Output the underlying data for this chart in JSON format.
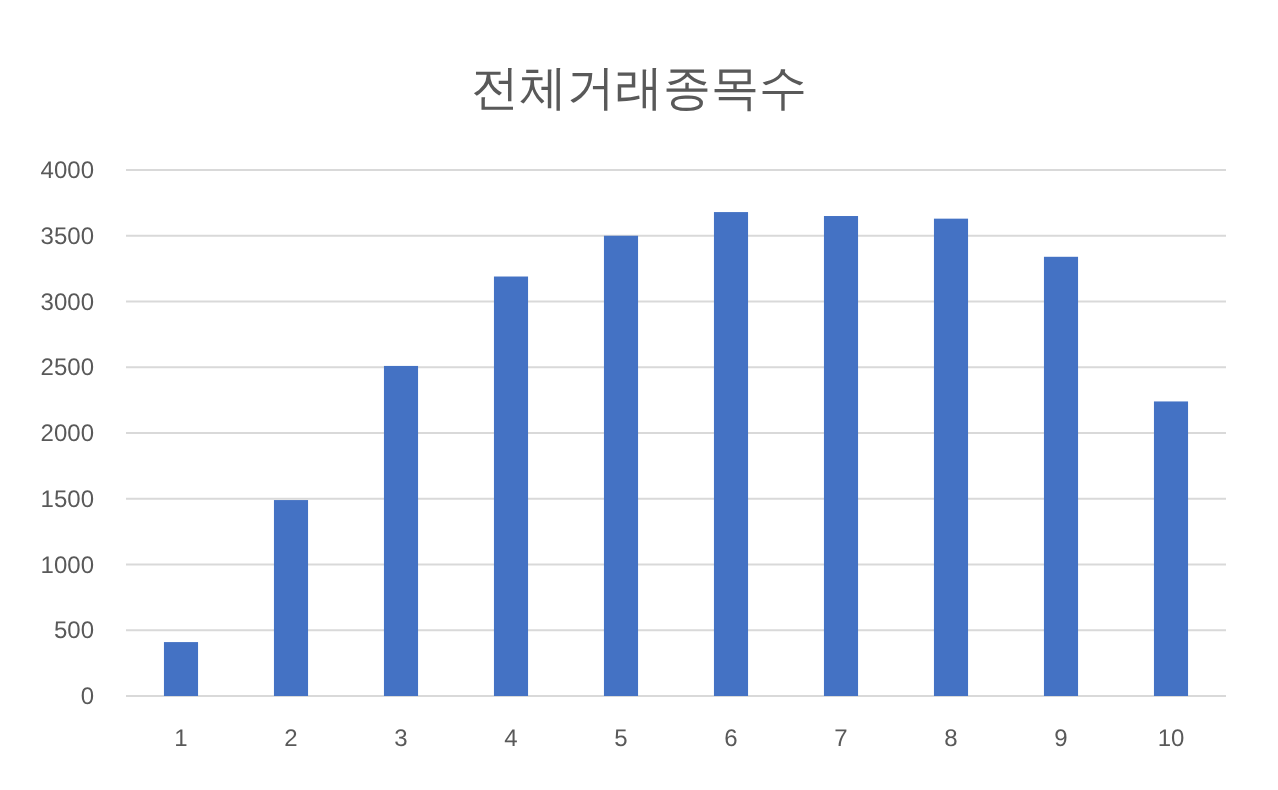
{
  "chart_data": {
    "type": "bar",
    "title": "전체거래종목수",
    "categories": [
      "1",
      "2",
      "3",
      "4",
      "5",
      "6",
      "7",
      "8",
      "9",
      "10"
    ],
    "values": [
      410,
      1490,
      2510,
      3190,
      3500,
      3680,
      3650,
      3630,
      3340,
      2240
    ],
    "color": "#4472c4",
    "ylim": [
      0,
      4000
    ],
    "yticks": [
      0,
      500,
      1000,
      1500,
      2000,
      2500,
      3000,
      3500,
      4000
    ],
    "grid": "y"
  }
}
